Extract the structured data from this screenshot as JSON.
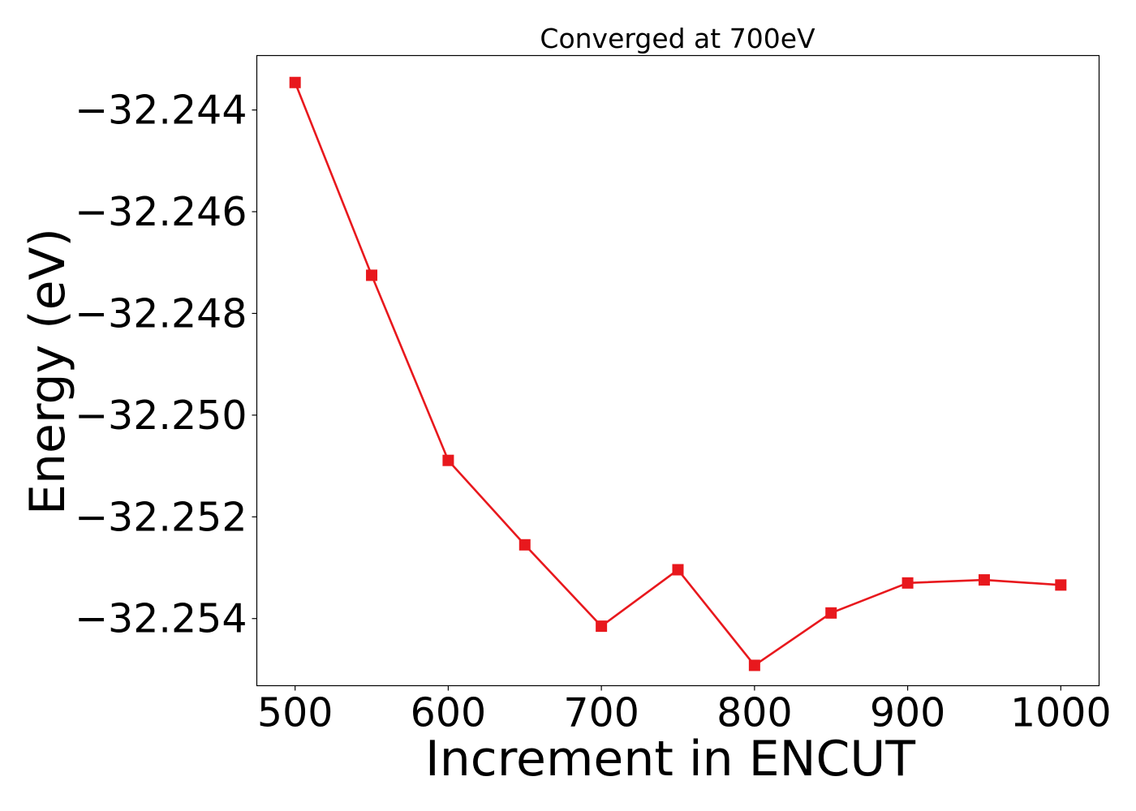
{
  "chart_data": {
    "type": "line",
    "title": "Converged at 700eV",
    "xlabel": "Increment in ENCUT",
    "ylabel": "Energy (eV)",
    "xlim": [
      475,
      1025
    ],
    "ylim": [
      -32.25532,
      -32.24293
    ],
    "xticks": [
      500,
      600,
      700,
      800,
      900,
      1000
    ],
    "xtick_labels": [
      "500",
      "600",
      "700",
      "800",
      "900",
      "1000"
    ],
    "yticks": [
      -32.244,
      -32.246,
      -32.248,
      -32.25,
      -32.252,
      -32.254
    ],
    "ytick_labels": [
      "−32.244",
      "−32.246",
      "−32.248",
      "−32.250",
      "−32.252",
      "−32.254"
    ],
    "grid": false,
    "legend": "none",
    "series": [
      {
        "x": [
          500,
          550,
          600,
          650,
          700,
          750,
          800,
          850,
          900,
          950,
          1000
        ],
        "y": [
          -32.24346,
          -32.24725,
          -32.25089,
          -32.25255,
          -32.25415,
          -32.25304,
          -32.25492,
          -32.25389,
          -32.2533,
          -32.25324,
          -32.25334
        ],
        "color": "#e8181d",
        "marker": "square"
      }
    ]
  }
}
